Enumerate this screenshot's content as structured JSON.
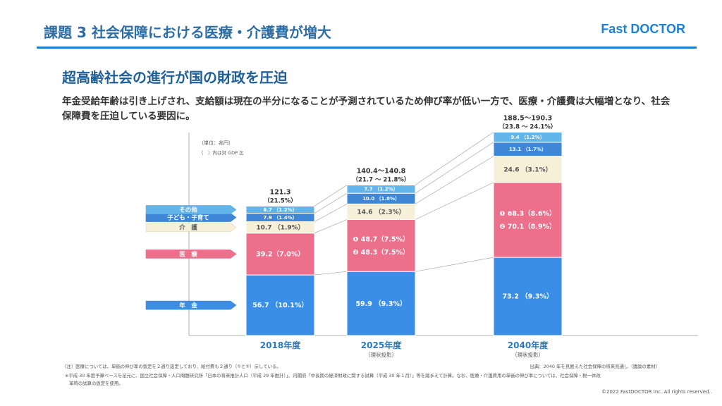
{
  "header": {
    "title": "課題 3 社会保障における医療・介護費が増大",
    "logo": "Fast DOCTOR",
    "brand_color": "#1a7fd0"
  },
  "main": {
    "heading": "超高齢社会の進行が国の財政を圧迫",
    "description": "年金受給年齢は引き上げされ、支給額は現在の半分になることが予測されているため伸び率が低い一方で、医療・介護費は大幅増となり、社会保障費を圧迫している要因に。"
  },
  "notes": {
    "unit": "（単位：兆円）",
    "gdp": "（　）内は対 GDP 比",
    "note1": "（注）医療については、単価の伸び率の仮定を２通り設定しており、給付費も２通り（①と②）示している。",
    "note2": "※平成 30 年度予算ベースを足元に、国立社会保障・人口問題研究所「日本の将来推計人口（平成 29 年推計）」、内閣府「中長期の経済財政に関する試算（平成 30 年１月）」等を踏まえて計算。なお、医療・介護費用の単価の伸び率については、社会保障・税一体改",
    "note3": "革時の試算の仮定を使用。",
    "source": "出典：2040 年を見据えた社会保障の将来見通し（議論の素材）"
  },
  "footer": {
    "copyright": "©2022 FastDOCTOR Inc. All rights reserved.."
  },
  "chart_data": {
    "type": "bar",
    "stacked": true,
    "title": "",
    "unit": "兆円",
    "categories": [
      "2018年度",
      "2025年度",
      "2040年度"
    ],
    "category_subtitles": [
      "",
      "（現状投影）",
      "（現状投影）"
    ],
    "totals": [
      "121.3",
      "140.4～140.8",
      "188.5～190.3"
    ],
    "totals_gdp": [
      "（21.5%）",
      "（21.7 ～ 21.8%）",
      "（23.8 ～ 24.1%）"
    ],
    "ylim": [
      0,
      195
    ],
    "series": [
      {
        "name": "年　金",
        "color": "#3a8ee6",
        "values": [
          56.7,
          59.9,
          73.2
        ],
        "gdp": [
          "（10.1%）",
          "（9.3%）",
          "（9.3%）"
        ]
      },
      {
        "name": "医　療",
        "color": "#ec6f8b",
        "values": [
          39.2,
          48.7,
          70.1
        ],
        "gdp": [
          "（7.0%）",
          "（7.5%）",
          "（8.9%）"
        ],
        "alt_values": [
          null,
          48.3,
          68.3
        ],
        "alt_gdp": [
          null,
          "（7.5%）",
          "（8.6%）"
        ],
        "labels": [
          [
            "39.2（7.0%）"
          ],
          [
            "❶ 48.7（7.5%）",
            "❷ 48.3（7.5%）"
          ],
          [
            "❶ 68.3（8.6%）",
            "❷ 70.1（8.9%）"
          ]
        ]
      },
      {
        "name": "介　護",
        "color": "#f6f0d9",
        "values": [
          10.7,
          14.6,
          24.6
        ],
        "gdp": [
          "（1.9%）",
          "（2.3%）",
          "（3.1%）"
        ]
      },
      {
        "name": "子ども・子育て",
        "color": "#3f87d6",
        "values": [
          7.9,
          10.0,
          13.1
        ],
        "gdp": [
          "（1.4%）",
          "（1.8%）",
          "（1.7%）"
        ]
      },
      {
        "name": "その他",
        "color": "#62b5ea",
        "values": [
          6.7,
          7.7,
          9.4
        ],
        "gdp": [
          "（1.2%）",
          "（1.2%）",
          "（1.2%）"
        ]
      }
    ]
  }
}
